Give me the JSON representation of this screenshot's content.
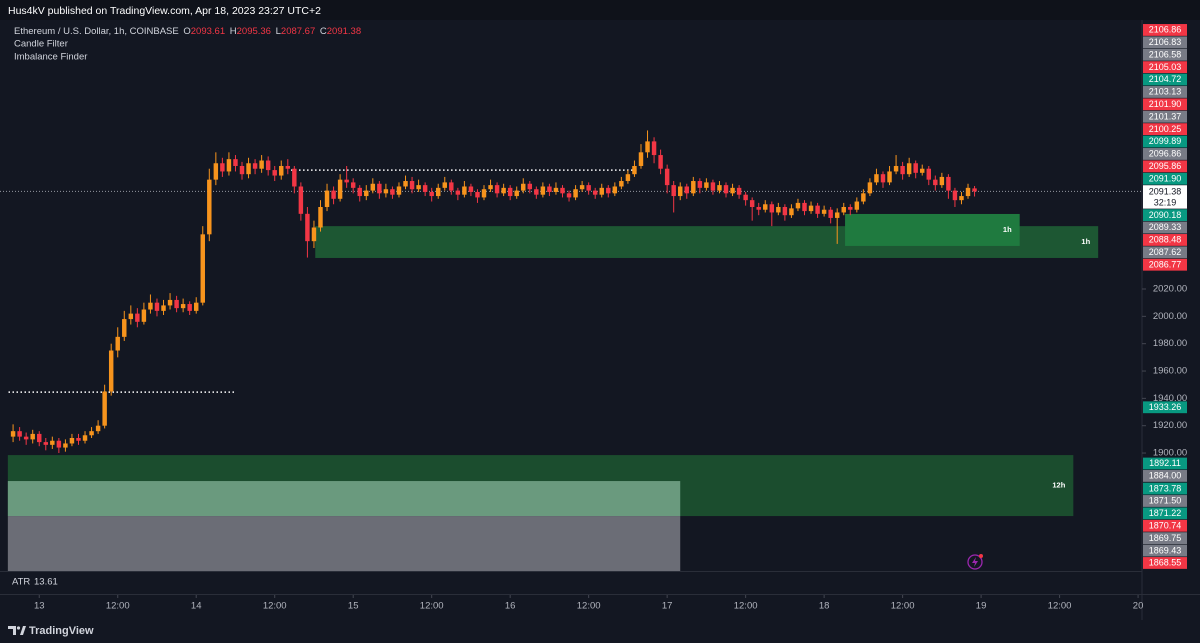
{
  "header": {
    "publisher": "Hus4kV published on TradingView.com, Apr 18, 2023 23:27 UTC+2"
  },
  "footer": {
    "brand": "TradingView"
  },
  "chart_data": {
    "type": "candlestick",
    "symbol": "Ethereum / U.S. Dollar, 1h, COINBASE",
    "ohlc_legend": [
      {
        "label": "O",
        "value": 2093.61
      },
      {
        "label": "H",
        "value": 2095.36
      },
      {
        "label": "L",
        "value": 2087.67
      },
      {
        "label": "C",
        "value": 2091.38
      }
    ],
    "indicators": [
      "Candle Filter",
      "Imbalance Finder"
    ],
    "up_color": "#f7941d",
    "down_color": "#f23645",
    "x": [
      -4,
      -3,
      -2,
      -1,
      0,
      1,
      2,
      3,
      4,
      5,
      6,
      7,
      8,
      9,
      10,
      11,
      12,
      13,
      14,
      15,
      16,
      17,
      18,
      19,
      20,
      21,
      22,
      23,
      24,
      25,
      26,
      27,
      28,
      29,
      30,
      31,
      32,
      33,
      34,
      35,
      36,
      37,
      38,
      39,
      40,
      41,
      42,
      43,
      44,
      45,
      46,
      47,
      48,
      49,
      50,
      51,
      52,
      53,
      54,
      55,
      56,
      57,
      58,
      59,
      60,
      61,
      62,
      63,
      64,
      65,
      66,
      67,
      68,
      69,
      70,
      71,
      72,
      73,
      74,
      75,
      76,
      77,
      78,
      79,
      80,
      81,
      82,
      83,
      84,
      85,
      86,
      87,
      88,
      89,
      90,
      91,
      92,
      93,
      94,
      95,
      96,
      97,
      98,
      99,
      100,
      101,
      102,
      103,
      104,
      105,
      106,
      107,
      108,
      109,
      110,
      111,
      112,
      113,
      114,
      115,
      116,
      117,
      118,
      119,
      120,
      121,
      122,
      123,
      124,
      125,
      126,
      127,
      128,
      129,
      130,
      131,
      132,
      133,
      134,
      135,
      136,
      137,
      138,
      139,
      140,
      141,
      142,
      143
    ],
    "ohlc": [
      [
        1912,
        1921,
        1908,
        1916
      ],
      [
        1916,
        1919,
        1909,
        1912
      ],
      [
        1912,
        1915,
        1906,
        1910
      ],
      [
        1910,
        1917,
        1907,
        1914
      ],
      [
        1914,
        1916,
        1905,
        1908
      ],
      [
        1908,
        1911,
        1902,
        1906
      ],
      [
        1906,
        1912,
        1903,
        1909
      ],
      [
        1909,
        1911,
        1900,
        1904
      ],
      [
        1904,
        1910,
        1901,
        1907
      ],
      [
        1907,
        1914,
        1905,
        1911
      ],
      [
        1911,
        1914,
        1906,
        1909
      ],
      [
        1909,
        1916,
        1907,
        1913
      ],
      [
        1913,
        1919,
        1911,
        1916
      ],
      [
        1916,
        1924,
        1914,
        1920
      ],
      [
        1920,
        1950,
        1918,
        1945
      ],
      [
        1945,
        1980,
        1942,
        1975
      ],
      [
        1975,
        1992,
        1970,
        1985
      ],
      [
        1985,
        2004,
        1982,
        1998
      ],
      [
        1998,
        2008,
        1994,
        2002
      ],
      [
        2002,
        2006,
        1992,
        1996
      ],
      [
        1996,
        2010,
        1994,
        2005
      ],
      [
        2005,
        2016,
        2002,
        2010
      ],
      [
        2010,
        2013,
        2000,
        2004
      ],
      [
        2004,
        2012,
        2001,
        2008
      ],
      [
        2008,
        2017,
        2005,
        2012
      ],
      [
        2012,
        2015,
        2003,
        2006
      ],
      [
        2006,
        2013,
        2003,
        2009
      ],
      [
        2009,
        2011,
        2001,
        2004
      ],
      [
        2004,
        2014,
        2002,
        2010
      ],
      [
        2010,
        2066,
        2008,
        2060
      ],
      [
        2060,
        2108,
        2055,
        2100
      ],
      [
        2100,
        2120,
        2096,
        2112
      ],
      [
        2112,
        2116,
        2102,
        2106
      ],
      [
        2106,
        2120,
        2103,
        2115
      ],
      [
        2115,
        2118,
        2106,
        2110
      ],
      [
        2110,
        2113,
        2100,
        2104
      ],
      [
        2104,
        2116,
        2101,
        2112
      ],
      [
        2112,
        2115,
        2104,
        2108
      ],
      [
        2108,
        2118,
        2105,
        2114
      ],
      [
        2114,
        2117,
        2103,
        2107
      ],
      [
        2107,
        2110,
        2099,
        2103
      ],
      [
        2103,
        2114,
        2100,
        2110
      ],
      [
        2110,
        2115,
        2104,
        2108
      ],
      [
        2108,
        2110,
        2090,
        2095
      ],
      [
        2095,
        2098,
        2070,
        2075
      ],
      [
        2075,
        2080,
        2043,
        2055
      ],
      [
        2055,
        2070,
        2050,
        2065
      ],
      [
        2065,
        2085,
        2062,
        2080
      ],
      [
        2080,
        2097,
        2077,
        2092
      ],
      [
        2092,
        2095,
        2082,
        2086
      ],
      [
        2086,
        2104,
        2084,
        2100
      ],
      [
        2100,
        2110,
        2094,
        2098
      ],
      [
        2098,
        2101,
        2090,
        2094
      ],
      [
        2094,
        2096,
        2084,
        2088
      ],
      [
        2088,
        2096,
        2085,
        2092
      ],
      [
        2092,
        2101,
        2090,
        2097
      ],
      [
        2097,
        2099,
        2086,
        2090
      ],
      [
        2090,
        2097,
        2087,
        2093
      ],
      [
        2093,
        2095,
        2086,
        2089
      ],
      [
        2089,
        2098,
        2087,
        2095
      ],
      [
        2095,
        2103,
        2093,
        2099
      ],
      [
        2099,
        2102,
        2090,
        2093
      ],
      [
        2093,
        2100,
        2091,
        2096
      ],
      [
        2096,
        2098,
        2088,
        2091
      ],
      [
        2091,
        2094,
        2084,
        2088
      ],
      [
        2088,
        2097,
        2086,
        2094
      ],
      [
        2094,
        2102,
        2092,
        2098
      ],
      [
        2098,
        2100,
        2089,
        2092
      ],
      [
        2092,
        2094,
        2085,
        2089
      ],
      [
        2089,
        2099,
        2087,
        2095
      ],
      [
        2095,
        2097,
        2088,
        2091
      ],
      [
        2091,
        2093,
        2083,
        2087
      ],
      [
        2087,
        2096,
        2085,
        2093
      ],
      [
        2093,
        2100,
        2091,
        2096
      ],
      [
        2096,
        2098,
        2087,
        2090
      ],
      [
        2090,
        2097,
        2088,
        2094
      ],
      [
        2094,
        2096,
        2085,
        2088
      ],
      [
        2088,
        2095,
        2086,
        2092
      ],
      [
        2092,
        2101,
        2090,
        2097
      ],
      [
        2097,
        2099,
        2090,
        2093
      ],
      [
        2093,
        2095,
        2086,
        2089
      ],
      [
        2089,
        2098,
        2087,
        2095
      ],
      [
        2095,
        2097,
        2088,
        2091
      ],
      [
        2091,
        2098,
        2089,
        2094
      ],
      [
        2094,
        2096,
        2087,
        2090
      ],
      [
        2090,
        2092,
        2084,
        2087
      ],
      [
        2087,
        2096,
        2085,
        2093
      ],
      [
        2093,
        2099,
        2091,
        2096
      ],
      [
        2096,
        2098,
        2089,
        2092
      ],
      [
        2092,
        2094,
        2086,
        2089
      ],
      [
        2089,
        2097,
        2087,
        2094
      ],
      [
        2094,
        2096,
        2087,
        2090
      ],
      [
        2090,
        2098,
        2088,
        2095
      ],
      [
        2095,
        2102,
        2093,
        2099
      ],
      [
        2099,
        2107,
        2097,
        2104
      ],
      [
        2104,
        2114,
        2102,
        2110
      ],
      [
        2110,
        2126,
        2108,
        2120
      ],
      [
        2120,
        2136,
        2116,
        2128
      ],
      [
        2128,
        2131,
        2112,
        2118
      ],
      [
        2118,
        2122,
        2104,
        2108
      ],
      [
        2108,
        2111,
        2090,
        2096
      ],
      [
        2096,
        2099,
        2076,
        2088
      ],
      [
        2088,
        2098,
        2085,
        2095
      ],
      [
        2095,
        2097,
        2086,
        2090
      ],
      [
        2090,
        2102,
        2088,
        2099
      ],
      [
        2099,
        2101,
        2090,
        2094
      ],
      [
        2094,
        2101,
        2092,
        2098
      ],
      [
        2098,
        2100,
        2089,
        2092
      ],
      [
        2092,
        2099,
        2090,
        2096
      ],
      [
        2096,
        2098,
        2087,
        2090
      ],
      [
        2090,
        2097,
        2088,
        2094
      ],
      [
        2094,
        2096,
        2086,
        2089
      ],
      [
        2089,
        2091,
        2081,
        2085
      ],
      [
        2085,
        2087,
        2070,
        2080
      ],
      [
        2080,
        2083,
        2074,
        2078
      ],
      [
        2078,
        2085,
        2076,
        2082
      ],
      [
        2082,
        2084,
        2066,
        2076
      ],
      [
        2076,
        2083,
        2074,
        2080
      ],
      [
        2080,
        2082,
        2070,
        2074
      ],
      [
        2074,
        2082,
        2072,
        2079
      ],
      [
        2079,
        2086,
        2077,
        2083
      ],
      [
        2083,
        2085,
        2074,
        2077
      ],
      [
        2077,
        2084,
        2075,
        2081
      ],
      [
        2081,
        2083,
        2072,
        2075
      ],
      [
        2075,
        2081,
        2073,
        2078
      ],
      [
        2078,
        2080,
        2068,
        2072
      ],
      [
        2072,
        2079,
        2053,
        2076
      ],
      [
        2076,
        2083,
        2074,
        2080
      ],
      [
        2080,
        2082,
        2074,
        2078
      ],
      [
        2078,
        2087,
        2076,
        2084
      ],
      [
        2084,
        2093,
        2082,
        2090
      ],
      [
        2090,
        2101,
        2088,
        2098
      ],
      [
        2098,
        2108,
        2096,
        2104
      ],
      [
        2104,
        2106,
        2094,
        2098
      ],
      [
        2098,
        2110,
        2096,
        2106
      ],
      [
        2106,
        2118,
        2104,
        2110
      ],
      [
        2110,
        2113,
        2100,
        2104
      ],
      [
        2104,
        2116,
        2102,
        2112
      ],
      [
        2112,
        2114,
        2101,
        2105
      ],
      [
        2105,
        2111,
        2103,
        2108
      ],
      [
        2108,
        2110,
        2096,
        2100
      ],
      [
        2100,
        2103,
        2092,
        2096
      ],
      [
        2096,
        2105,
        2094,
        2102
      ],
      [
        2102,
        2104,
        2086,
        2092
      ],
      [
        2092,
        2094,
        2080,
        2085
      ],
      [
        2085,
        2091,
        2082,
        2088
      ],
      [
        2088,
        2097,
        2086,
        2094
      ],
      [
        2093.61,
        2095.36,
        2087.67,
        2091.38
      ]
    ],
    "xlim": [
      -6,
      168.6
    ],
    "xticks": [
      {
        "value": 0,
        "label": "13"
      },
      {
        "value": 12,
        "label": "12:00"
      },
      {
        "value": 24,
        "label": "14"
      },
      {
        "value": 36,
        "label": "12:00"
      },
      {
        "value": 48,
        "label": "15"
      },
      {
        "value": 60,
        "label": "12:00"
      },
      {
        "value": 72,
        "label": "16"
      },
      {
        "value": 84,
        "label": "12:00"
      },
      {
        "value": 96,
        "label": "17"
      },
      {
        "value": 108,
        "label": "12:00"
      },
      {
        "value": 120,
        "label": "18"
      },
      {
        "value": 132,
        "label": "12:00"
      },
      {
        "value": 144,
        "label": "19"
      },
      {
        "value": 156,
        "label": "12:00"
      },
      {
        "value": 168,
        "label": "20"
      }
    ],
    "ylim": [
      1813.7,
      2216.8
    ],
    "yticks": [
      {
        "value": 1900,
        "label": "1900.00"
      },
      {
        "value": 1920,
        "label": "1920.00"
      },
      {
        "value": 1940,
        "label": "1940.00"
      },
      {
        "value": 1960,
        "label": "1960.00"
      },
      {
        "value": 1980,
        "label": "1980.00"
      },
      {
        "value": 2000,
        "label": "2000.00"
      },
      {
        "value": 2020,
        "label": "2020.00"
      }
    ],
    "zones": [
      {
        "x": [
          42.2,
          161.9
        ],
        "y": [
          2042.7,
          2066
        ],
        "color": "#1d5733",
        "label": "1h"
      },
      {
        "x": [
          123.2,
          149.9
        ],
        "y": [
          2051.5,
          2074.9
        ],
        "color": "#1f7a3f",
        "label": "1h"
      },
      {
        "x": [
          -4.8,
          158.1
        ],
        "y": [
          1853.9,
          1898.5
        ],
        "color": "#1b4d2e",
        "label": "12h"
      },
      {
        "x": [
          -4.8,
          98
        ],
        "y": [
          1853.9,
          1879.5
        ],
        "color": "#6a9a7e"
      },
      {
        "x": [
          -4.8,
          98
        ],
        "y": [
          1813.7,
          1853.9
        ],
        "color": "#6b6d76"
      }
    ],
    "levels": [
      {
        "value": 2107,
        "x": [
          38.5,
          91.4
        ]
      },
      {
        "value": 1944.6,
        "x": [
          -4.7,
          30
        ]
      }
    ],
    "price_labels": [
      {
        "value": 2106.86,
        "color": "#f23645"
      },
      {
        "value": 2106.83,
        "color": "#787b86"
      },
      {
        "value": 2106.58,
        "color": "#787b86"
      },
      {
        "value": 2105.03,
        "color": "#f23645"
      },
      {
        "value": 2104.72,
        "color": "#089981"
      },
      {
        "value": 2103.13,
        "color": "#787b86"
      },
      {
        "value": 2101.9,
        "label": "2101.90",
        "color": "#f23645"
      },
      {
        "value": 2101.37,
        "color": "#787b86"
      },
      {
        "value": 2100.25,
        "color": "#f23645"
      },
      {
        "value": 2099.89,
        "color": "#089981"
      },
      {
        "value": 2096.86,
        "color": "#787b86"
      },
      {
        "value": 2095.86,
        "color": "#f23645"
      },
      {
        "value": 2091.9,
        "label": "2091.90",
        "color": "#089981"
      },
      {
        "value": 2091.38,
        "color": "#ffffff",
        "countdown": "32:19"
      },
      {
        "value": 2090.18,
        "color": "#089981"
      },
      {
        "value": 2089.33,
        "color": "#787b86"
      },
      {
        "value": 2088.48,
        "color": "#f23645"
      },
      {
        "value": 2087.62,
        "color": "#787b86"
      },
      {
        "value": 2086.77,
        "color": "#f23645"
      },
      {
        "value": 1933.26,
        "color": "#089981"
      },
      {
        "value": 1892.11,
        "color": "#089981"
      },
      {
        "value": 1884,
        "label": "1884.00",
        "color": "#787b86"
      },
      {
        "value": 1873.78,
        "color": "#089981"
      },
      {
        "value": 1871.5,
        "label": "1871.50",
        "color": "#787b86"
      },
      {
        "value": 1871.22,
        "color": "#089981"
      },
      {
        "value": 1870.74,
        "color": "#f23645"
      },
      {
        "value": 1869.75,
        "color": "#787b86"
      },
      {
        "value": 1869.43,
        "color": "#787b86"
      },
      {
        "value": 1868.55,
        "color": "#f23645"
      }
    ],
    "atr": {
      "name": "ATR",
      "value": 13.61,
      "color": "#f23645"
    }
  }
}
